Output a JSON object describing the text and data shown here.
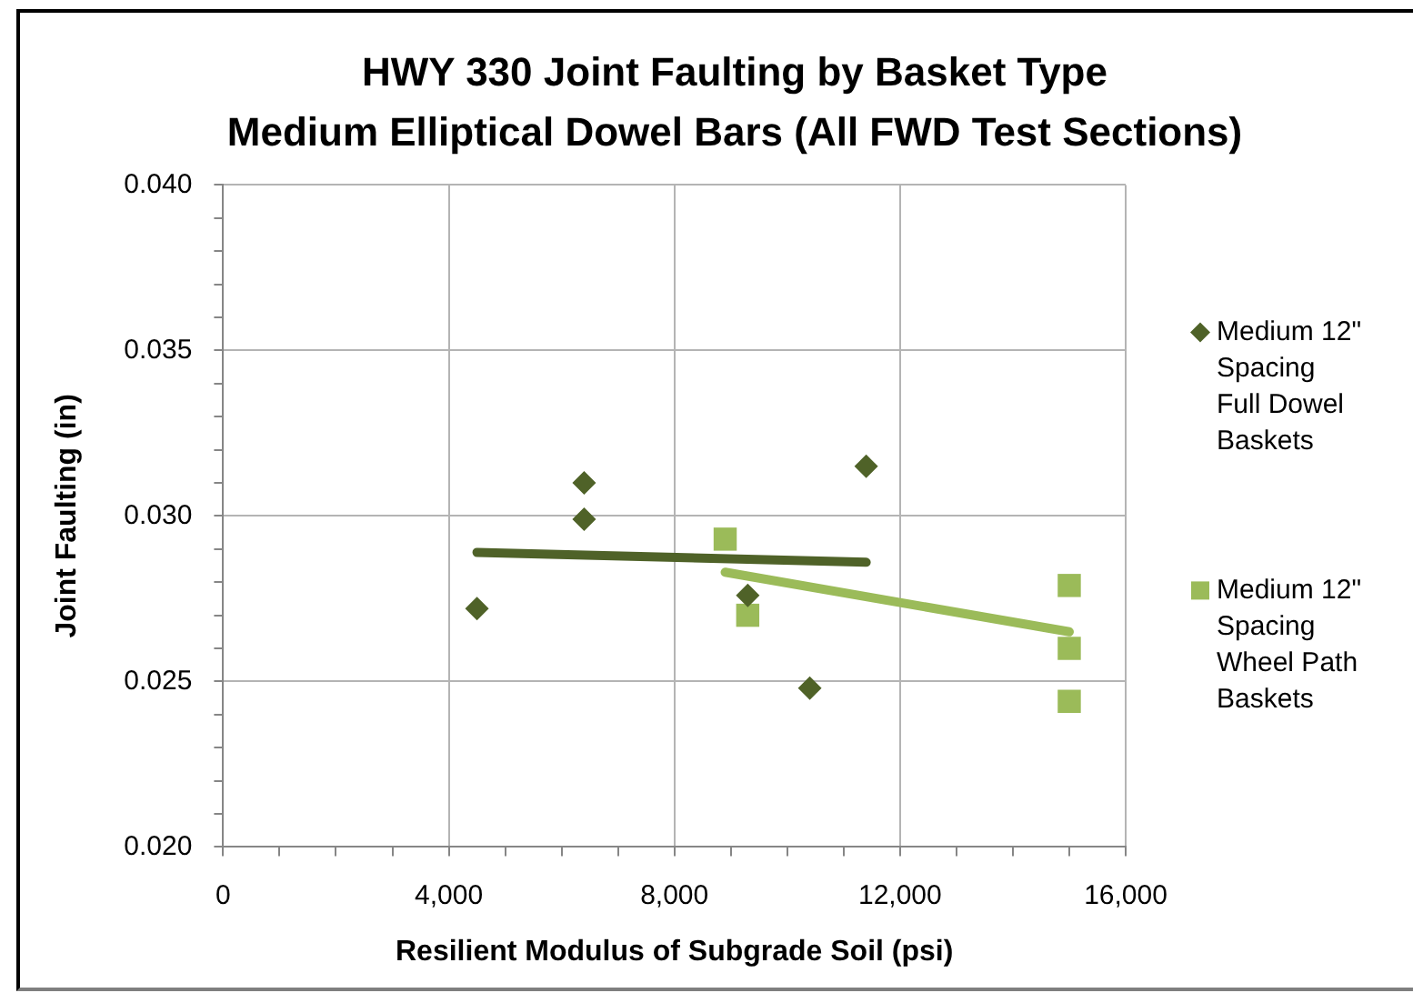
{
  "chart_data": {
    "type": "scatter",
    "title": "HWY 330 Joint Faulting by Basket Type",
    "subtitle": "Medium Elliptical Dowel Bars (All FWD Test Sections)",
    "xlabel": "Resilient Modulus of Subgrade Soil (psi)",
    "ylabel": "Joint Faulting (in)",
    "xlim": [
      0,
      16000
    ],
    "xticks": [
      0,
      {
        "value": 1000,
        "label": null
      },
      {
        "value": 2000,
        "label": null
      },
      {
        "value": 3000,
        "label": null
      },
      {
        "value": 4000,
        "label": "4,000"
      },
      {
        "value": 5000,
        "label": null
      },
      {
        "value": 6000,
        "label": null
      },
      {
        "value": 7000,
        "label": null
      },
      {
        "value": 8000,
        "label": "8,000"
      },
      {
        "value": 9000,
        "label": null
      },
      {
        "value": 10000,
        "label": null
      },
      {
        "value": 11000,
        "label": null
      },
      {
        "value": 12000,
        "label": "12,000"
      },
      {
        "value": 13000,
        "label": null
      },
      {
        "value": 14000,
        "label": null
      },
      {
        "value": 15000,
        "label": null
      },
      {
        "value": 16000,
        "label": "16,000"
      }
    ],
    "ylim": [
      0.02,
      0.04
    ],
    "yticks": [
      {
        "value": 0.02,
        "label": "0.020"
      },
      {
        "value": 0.021,
        "label": null
      },
      {
        "value": 0.022,
        "label": null
      },
      {
        "value": 0.023,
        "label": null
      },
      {
        "value": 0.024,
        "label": null
      },
      {
        "value": 0.025,
        "label": "0.025"
      },
      {
        "value": 0.026,
        "label": null
      },
      {
        "value": 0.027,
        "label": null
      },
      {
        "value": 0.028,
        "label": null
      },
      {
        "value": 0.029,
        "label": null
      },
      {
        "value": 0.03,
        "label": "0.030"
      },
      {
        "value": 0.031,
        "label": null
      },
      {
        "value": 0.032,
        "label": null
      },
      {
        "value": 0.033,
        "label": null
      },
      {
        "value": 0.034,
        "label": null
      },
      {
        "value": 0.035,
        "label": "0.035"
      },
      {
        "value": 0.036,
        "label": null
      },
      {
        "value": 0.037,
        "label": null
      },
      {
        "value": 0.038,
        "label": null
      },
      {
        "value": 0.039,
        "label": null
      },
      {
        "value": 0.04,
        "label": "0.040"
      }
    ],
    "grid": true,
    "legend": "right",
    "series": [
      {
        "name": "Medium 12\" Spacing Full Dowel Baskets",
        "marker": "diamond",
        "color": "#4f6228",
        "x": [
          4500,
          6400,
          6400,
          9300,
          10400,
          11400
        ],
        "values": [
          0.0272,
          0.031,
          0.0299,
          0.0276,
          0.0248,
          0.0315
        ]
      },
      {
        "name": "Medium 12\" Spacing Wheel Path Baskets",
        "marker": "square",
        "color": "#9bbb59",
        "x": [
          8900,
          9300,
          15000,
          15000,
          15000
        ],
        "values": [
          0.0293,
          0.027,
          0.0279,
          0.026,
          0.0244
        ]
      },
      {
        "type": "line",
        "color": "#4f6228",
        "x": [
          4500,
          11400
        ],
        "values": [
          0.0289,
          0.0286
        ]
      },
      {
        "type": "line",
        "color": "#9bbb59",
        "x": [
          8900,
          15000
        ],
        "values": [
          0.0283,
          0.0265
        ]
      }
    ]
  }
}
